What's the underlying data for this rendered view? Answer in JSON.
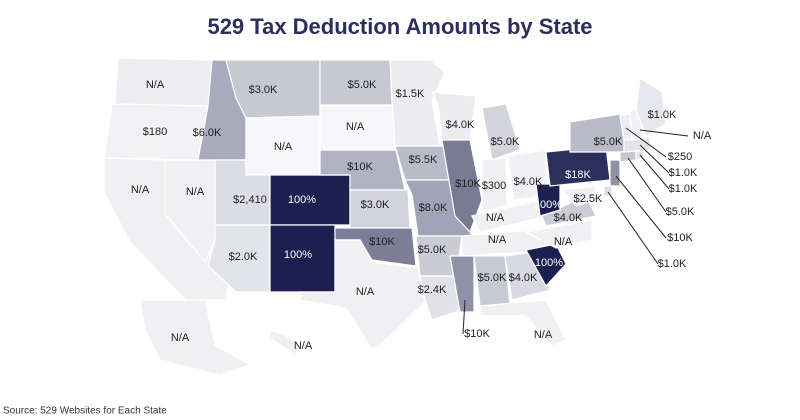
{
  "title": "529 Tax Deduction Amounts by State",
  "source": "Source: 529 Websites for Each State",
  "regions": [
    {
      "label": "N/A",
      "color": "#eeeef2"
    },
    {
      "label": "$180",
      "color": "#f2f2f5"
    },
    {
      "label": "N/A",
      "color": "#f0f0f3"
    },
    {
      "label": "N/A",
      "color": "#f0f0f3"
    },
    {
      "label": "$6.0K",
      "color": "#a9abbd"
    },
    {
      "label": "$3.0K",
      "color": "#c6c8d3"
    },
    {
      "label": "N/A",
      "color": "#f7f7f9"
    },
    {
      "label": "$2,410",
      "color": "#dcdde4"
    },
    {
      "label": "100%",
      "color": "#1b2050"
    },
    {
      "label": "$2.0K",
      "color": "#e3e4ea"
    },
    {
      "label": "100%",
      "color": "#1b2050"
    },
    {
      "label": "$5.0K",
      "color": "#c6c8d3"
    },
    {
      "label": "N/A",
      "color": "#f7f7f9"
    },
    {
      "label": "$10K",
      "color": "#b1b3c3"
    },
    {
      "label": "$3.0K",
      "color": "#d2d3dc"
    },
    {
      "label": "$10K",
      "color": "#7b7e96"
    },
    {
      "label": "N/A",
      "color": "#f0f0f3"
    },
    {
      "label": "$1.5K",
      "color": "#ececf0"
    },
    {
      "label": "$5.5K",
      "color": "#b9bbc8"
    },
    {
      "label": "$8.0K",
      "color": "#a1a4b6"
    },
    {
      "label": "$5.0K",
      "color": "#cacbd6"
    },
    {
      "label": "$2.4K",
      "color": "#e1e2e8"
    },
    {
      "label": "$4.0K",
      "color": "#ececf0"
    },
    {
      "label": "$10K",
      "color": "#787b94"
    },
    {
      "label": "$5.0K",
      "color": "#d2d3dc"
    },
    {
      "label": "$300",
      "color": "#f0f0f4"
    },
    {
      "label": "$4.0K",
      "color": "#f0f0f4"
    },
    {
      "label": "N/A",
      "color": "#f0f0f3"
    },
    {
      "label": "N/A",
      "color": "#f0f0f3"
    },
    {
      "label": "$10K",
      "color": "#8f92a7"
    },
    {
      "label": "$5.0K",
      "color": "#c7c9d4"
    },
    {
      "label": "$4.0K",
      "color": "#d8d9e1"
    },
    {
      "label": "N/A",
      "color": "#f0f0f3"
    },
    {
      "label": "100%",
      "color": "#1b2050"
    },
    {
      "label": "N/A",
      "color": "#f0f0f3"
    },
    {
      "label": "$4.0K",
      "color": "#cacbd6"
    },
    {
      "label": "100%",
      "color": "#1b2050"
    },
    {
      "label": "$18K",
      "color": "#2b2f5c"
    },
    {
      "label": "$5.0K",
      "color": "#b9bbc8"
    },
    {
      "label": "$2.5K",
      "color": "#f0f0f4"
    },
    {
      "label": "$10K",
      "color": "#8f92a7"
    },
    {
      "label": "$1.0K",
      "color": "#dcdde4"
    },
    {
      "label": "$5.0K",
      "color": "#c6c8d3"
    },
    {
      "label": "$1.0K",
      "color": "#e3e4ea"
    },
    {
      "label": "$1.0K",
      "color": "#e3e4ea"
    },
    {
      "label": "$250",
      "color": "#eeeef2"
    },
    {
      "label": "N/A",
      "color": "#f0f0f3"
    },
    {
      "label": "$1.0K",
      "color": "#e7e8ed"
    },
    {
      "label": "N/A",
      "color": "#f0f0f3"
    },
    {
      "label": "N/A",
      "color": "#f0f0f3"
    }
  ]
}
